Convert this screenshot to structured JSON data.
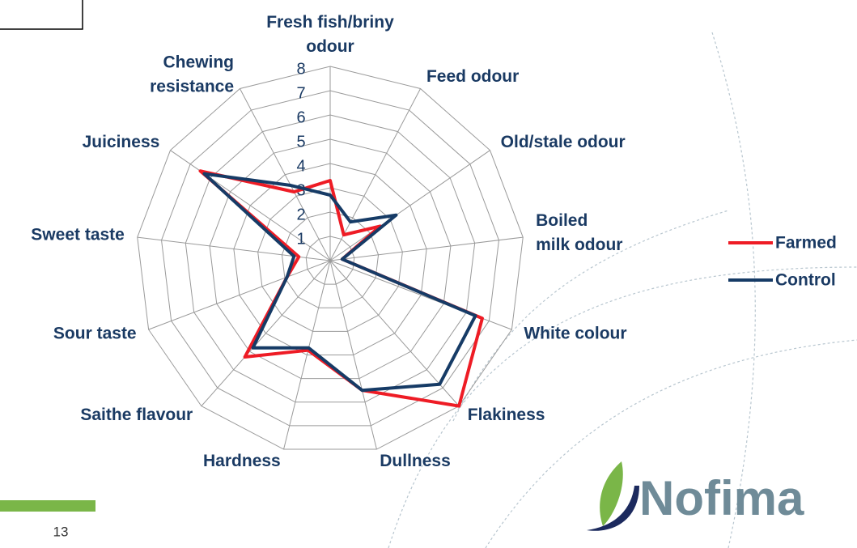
{
  "chart_data": {
    "type": "radar",
    "categories": [
      "Fresh fish/briny odour",
      "Feed odour",
      "Old/stale odour",
      "Boiled milk odour",
      "White colour",
      "Flakiness",
      "Dullness",
      "Hardness",
      "Saithe flavour",
      "Sour taste",
      "Sweet taste",
      "Juiciness",
      "Chewing resistance"
    ],
    "series": [
      {
        "name": "Farmed",
        "color": "#ee1c25",
        "values": [
          3.3,
          1.2,
          2.5,
          0.5,
          6.7,
          8.0,
          5.5,
          3.8,
          5.3,
          1.9,
          1.3,
          6.5,
          3.2
        ]
      },
      {
        "name": "Control",
        "color": "#163b66",
        "values": [
          2.7,
          1.8,
          3.3,
          0.5,
          6.4,
          6.8,
          5.5,
          3.7,
          4.8,
          1.9,
          1.5,
          6.3,
          3.5
        ]
      }
    ],
    "rlim": [
      0,
      8
    ],
    "rticks": [
      1,
      2,
      3,
      4,
      5,
      6,
      7,
      8
    ],
    "grid": true
  },
  "page": {
    "slide_number": "13",
    "logo": "Nofima"
  }
}
